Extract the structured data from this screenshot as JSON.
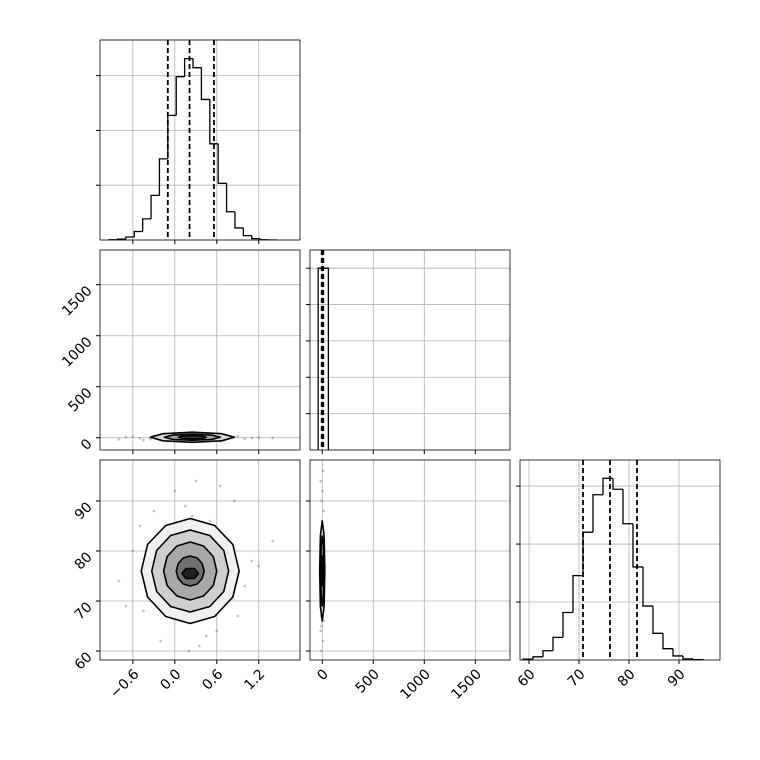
{
  "chart_data": {
    "type": "corner",
    "parameters": [
      {
        "lim": [
          -1.07,
          1.79
        ],
        "ticks": [
          {
            "value": -0.6,
            "label": "−0.6"
          },
          {
            "value": 0,
            "label": "0.0"
          },
          0.6,
          1.2
        ]
      },
      {
        "lim": [
          -120,
          1840
        ],
        "ticks": [
          0,
          500,
          1000,
          1500
        ]
      },
      {
        "lim": [
          58.2,
          98.2
        ],
        "ticks": [
          60,
          70,
          80,
          90
        ]
      }
    ],
    "histograms": [
      {
        "bins": [
          -0.94,
          -0.82,
          -0.7,
          -0.58,
          -0.46,
          -0.34,
          -0.22,
          -0.1,
          0.02,
          0.14,
          0.26,
          0.38,
          0.5,
          0.62,
          0.74,
          0.86,
          0.98,
          1.1,
          1.22,
          1.34,
          1.46
        ],
        "counts": [
          1,
          3,
          11,
          31,
          77,
          163,
          296,
          455,
          596,
          662,
          629,
          513,
          351,
          207,
          103,
          44,
          16,
          5,
          1,
          0
        ],
        "ylim": [
          0,
          730
        ],
        "yticks": [
          200,
          400,
          600
        ],
        "quantiles": [
          -0.1,
          0.21,
          0.56
        ]
      },
      {
        "bins": [
          -40,
          60
        ],
        "counts": [
          5
        ],
        "ylim": [
          0,
          5.5
        ],
        "yticks": [
          1,
          2,
          3,
          4,
          5
        ],
        "quantiles": [
          -5,
          3,
          10
        ]
      },
      {
        "bins": [
          58.8,
          60.8,
          62.8,
          64.8,
          66.8,
          68.8,
          70.8,
          72.8,
          74.8,
          76.8,
          78.8,
          80.8,
          82.8,
          84.8,
          86.8,
          88.8,
          90.8,
          92.8,
          94.8
        ],
        "counts": [
          3,
          11,
          32,
          78,
          164,
          291,
          441,
          570,
          627,
          589,
          470,
          321,
          186,
          92,
          39,
          14,
          4,
          1
        ],
        "ylim": [
          0,
          690
        ],
        "yticks": [
          200,
          400,
          600
        ],
        "quantiles": [
          70.8,
          76.2,
          81.6
        ]
      }
    ],
    "pairs": [
      {
        "x": [
          -0.8,
          -0.6,
          -0.45,
          -0.3,
          -0.2,
          -0.1,
          0,
          0.1,
          0.2,
          0.3,
          0.4,
          0.5,
          0.6,
          0.7,
          0.85,
          1.0,
          1.2,
          1.4,
          -0.7,
          -0.35,
          0.05,
          0.25,
          0.45,
          0.65,
          0.9,
          -0.5,
          0.15,
          0.35,
          0.75,
          1.1
        ],
        "y": [
          -15,
          10,
          -25,
          20,
          5,
          -30,
          15,
          -8,
          25,
          -20,
          30,
          -5,
          12,
          -18,
          8,
          -10,
          3,
          -2,
          6,
          -12,
          18,
          -22,
          35,
          -35,
          14,
          -6,
          22,
          -28,
          9,
          -4
        ],
        "point_color": "#555555",
        "contour_colors": [
          "#d9d9d9",
          "#a6a6a6",
          "#404040"
        ],
        "contours": [
          {
            "x": [
              0.85,
              0.67,
              0.25,
              -0.17,
              -0.35,
              -0.17,
              0.25,
              0.67
            ],
            "y": [
              5,
              40,
              55,
              40,
              5,
              -30,
              -45,
              -30
            ]
          },
          {
            "x": [
              0.65,
              0.53,
              0.25,
              -0.03,
              -0.15,
              -0.03,
              0.25,
              0.53
            ],
            "y": [
              5,
              26,
              35,
              26,
              5,
              -16,
              -25,
              -16
            ]
          },
          {
            "x": [
              0.45,
              0.39,
              0.25,
              0.11,
              0.05,
              0.11,
              0.25,
              0.39
            ],
            "y": [
              5,
              16,
              20,
              16,
              5,
              -6,
              -10,
              -6
            ]
          }
        ]
      },
      {
        "x": [
          -0.8,
          -0.6,
          -0.45,
          -0.3,
          -0.2,
          -0.1,
          0,
          0.1,
          0.2,
          0.3,
          0.4,
          0.5,
          0.6,
          0.7,
          0.85,
          1.0,
          1.2,
          1.4,
          -0.7,
          -0.35,
          0.05,
          0.25,
          0.45,
          0.65,
          0.9,
          -0.5,
          0.15,
          0.35,
          0.75,
          1.1
        ],
        "y": [
          74,
          80,
          68,
          88,
          62,
          84,
          92,
          66,
          60,
          94,
          71,
          86,
          64,
          79,
          90,
          73,
          77,
          82,
          69,
          75,
          70,
          87,
          63,
          93,
          67,
          85,
          89,
          61,
          72,
          78
        ],
        "point_color": "#555555",
        "contour_colors": [
          "#f0f0f0",
          "#cfcfcf",
          "#a8a8a8",
          "#707070",
          "#202020"
        ],
        "contours": [
          {
            "x": [
              0.92,
              0.83,
              0.57,
              0.22,
              -0.13,
              -0.39,
              -0.48,
              -0.39,
              -0.13,
              0.22,
              0.57,
              0.83
            ],
            "y": [
              76,
              81.3,
              85.1,
              86.5,
              85.1,
              81.3,
              76,
              70.8,
              66.9,
              65.5,
              66.9,
              70.8
            ]
          },
          {
            "x": [
              0.77,
              0.7,
              0.5,
              0.22,
              -0.06,
              -0.26,
              -0.33,
              -0.26,
              -0.06,
              0.22,
              0.5,
              0.7
            ],
            "y": [
              76,
              80.1,
              83.1,
              84.2,
              83.1,
              80.1,
              76,
              71.9,
              68.9,
              67.8,
              68.9,
              71.9
            ]
          },
          {
            "x": [
              0.6,
              0.55,
              0.41,
              0.22,
              0.03,
              -0.11,
              -0.16,
              -0.11,
              0.03,
              0.22,
              0.41,
              0.55
            ],
            "y": [
              76,
              78.9,
              81,
              81.8,
              81,
              78.9,
              76,
              73.1,
              71,
              70.2,
              71,
              73.1
            ]
          },
          {
            "x": [
              0.42,
              0.39,
              0.32,
              0.22,
              0.12,
              0.05,
              0.02,
              0.05,
              0.12,
              0.22,
              0.32,
              0.39
            ],
            "y": [
              76,
              77.5,
              78.6,
              79,
              78.6,
              77.5,
              76,
              74.5,
              73.4,
              73,
              73.4,
              74.5
            ]
          },
          {
            "x": [
              0.34,
              0.28,
              0.16,
              0.1,
              0.16,
              0.28
            ],
            "y": [
              75.5,
              76.5,
              76.5,
              75.5,
              74.5,
              74.5
            ]
          }
        ]
      },
      {
        "x": [
          -10,
          8,
          -15,
          12,
          -5,
          3,
          -18,
          16,
          0,
          -8,
          10,
          -12,
          6,
          -3,
          14,
          -6,
          2,
          -14,
          9,
          -1,
          5,
          -9,
          11,
          -16,
          7,
          -4,
          13,
          -11,
          4,
          -7
        ],
        "y": [
          60,
          62,
          64,
          66,
          68,
          70,
          72,
          74,
          76,
          78,
          80,
          82,
          84,
          86,
          88,
          90,
          92,
          94,
          96,
          75,
          77,
          73,
          79,
          71,
          81,
          69,
          83,
          67,
          85,
          65
        ],
        "point_color": "#555555",
        "contour_colors": [
          "#d9d9d9",
          "#a6a6a6",
          "#404040"
        ],
        "contours": [
          {
            "x": [
              25,
              18,
              0,
              -18,
              -25,
              -18,
              0,
              18
            ],
            "y": [
              76,
              83.1,
              86,
              83.1,
              76,
              68.9,
              66,
              68.9
            ]
          },
          {
            "x": [
              16,
              11,
              0,
              -11,
              -16,
              -11,
              0,
              11
            ],
            "y": [
              76,
              80.9,
              83,
              80.9,
              76,
              71.1,
              69,
              71.1
            ]
          },
          {
            "x": [
              8,
              6,
              0,
              -6,
              -8,
              -6,
              0,
              6
            ],
            "y": [
              76,
              78.1,
              79,
              78.1,
              76,
              73.9,
              73,
              73.9
            ]
          }
        ]
      }
    ]
  }
}
